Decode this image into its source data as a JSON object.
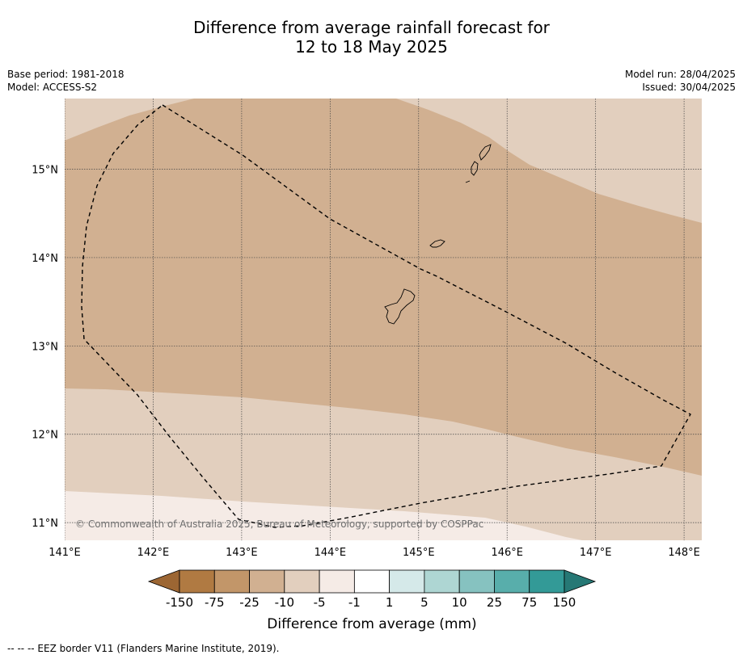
{
  "title": {
    "line1": "Difference from average rainfall forecast for",
    "line2": "12 to 18 May 2025"
  },
  "meta": {
    "base_period": "Base period: 1981-2018",
    "model": "Model: ACCESS-S2",
    "model_run": "Model run: 28/04/2025",
    "issued": "Issued: 30/04/2025"
  },
  "map": {
    "lon_range": [
      141.0,
      148.2
    ],
    "lat_range": [
      10.8,
      15.8
    ],
    "lon_ticks": [
      141,
      142,
      143,
      144,
      145,
      146,
      147,
      148
    ],
    "lon_labels": [
      "141°E",
      "142°E",
      "143°E",
      "144°E",
      "145°E",
      "146°E",
      "147°E",
      "148°E"
    ],
    "lat_ticks": [
      11,
      12,
      13,
      14,
      15
    ],
    "lat_labels": [
      "11°N",
      "12°N",
      "13°N",
      "14°N",
      "15°N"
    ],
    "grid": true,
    "copyright": "© Commonwealth of Australia 2025, Bureau of Meteorology, supported by COSPPac"
  },
  "colorbar": {
    "title": "Difference from average (mm)",
    "labels": [
      "-150",
      "-75",
      "-25",
      "-10",
      "-5",
      "-1",
      "1",
      "5",
      "10",
      "25",
      "75",
      "150"
    ],
    "colors": [
      "#9c6633",
      "#b07a42",
      "#c29669",
      "#d1b091",
      "#e2cfbe",
      "#f5ebe6",
      "#ffffff",
      "#d5e9e9",
      "#aed6d3",
      "#86c2c0",
      "#58aeab",
      "#339a97",
      "#267875"
    ],
    "extend": "both"
  },
  "footnote": "--  --  -- EEZ border V11 (Flanders Marine Institute, 2019)."
}
